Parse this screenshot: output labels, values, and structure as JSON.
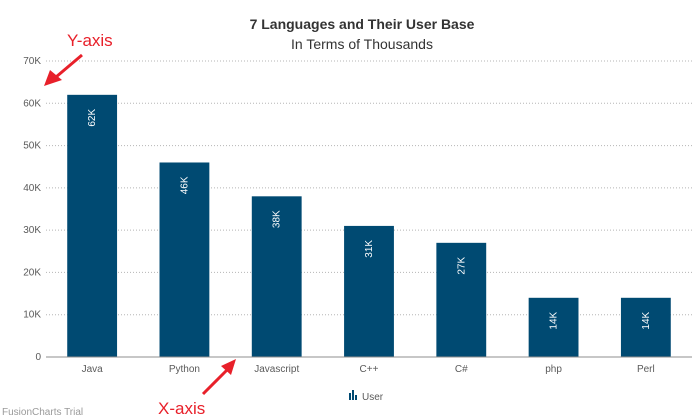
{
  "chart_data": {
    "type": "bar",
    "title": "7 Languages and Their User Base",
    "subtitle": "In Terms of Thousands",
    "categories": [
      "Java",
      "Python",
      "Javascript",
      "C++",
      "C#",
      "php",
      "Perl"
    ],
    "series": [
      {
        "name": "User",
        "values": [
          62,
          46,
          38,
          31,
          27,
          14,
          14
        ]
      }
    ],
    "data_labels": [
      "62K",
      "46K",
      "38K",
      "31K",
      "27K",
      "14K",
      "14K"
    ],
    "yticks": [
      "0",
      "10K",
      "20K",
      "30K",
      "40K",
      "50K",
      "60K",
      "70K"
    ],
    "ylim": [
      0,
      70
    ],
    "grid": true,
    "legend": "bottom-center",
    "bar_color": "#004a72",
    "annotations": {
      "y_axis": "Y-axis",
      "x_axis": "X-axis",
      "color": "#e8202a"
    }
  },
  "watermark": "FusionCharts Trial"
}
